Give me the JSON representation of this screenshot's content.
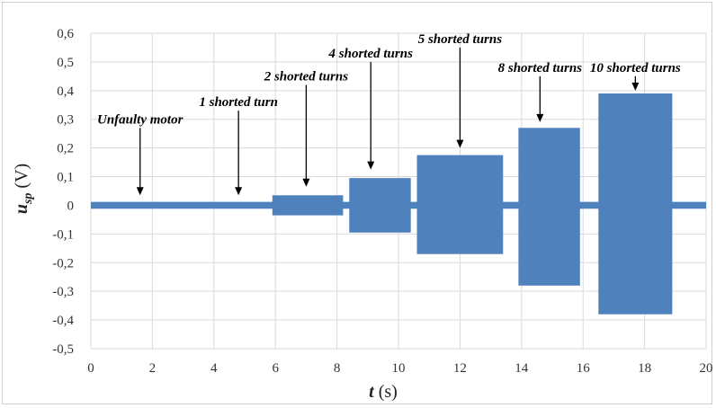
{
  "chart_data": {
    "type": "line",
    "title": "",
    "xlabel_var": "t",
    "xlabel_unit": " (s)",
    "ylabel_var": "u",
    "ylabel_sub": "sp",
    "ylabel_unit": " (V)",
    "xlim": [
      0,
      20
    ],
    "ylim": [
      -0.5,
      0.6
    ],
    "x_ticks": [
      0,
      2,
      4,
      6,
      8,
      10,
      12,
      14,
      16,
      18,
      20
    ],
    "x_tick_labels": [
      "0",
      "2",
      "4",
      "6",
      "8",
      "10",
      "12",
      "14",
      "16",
      "18",
      "20"
    ],
    "y_ticks": [
      -0.5,
      -0.4,
      -0.3,
      -0.2,
      -0.1,
      0,
      0.1,
      0.2,
      0.3,
      0.4,
      0.5,
      0.6
    ],
    "y_tick_labels": [
      "-0,5",
      "-0,4",
      "-0,3",
      "-0,2",
      "-0,1",
      "0",
      "0,1",
      "0,2",
      "0,3",
      "0,4",
      "0,5",
      "0,6"
    ],
    "grid": true,
    "series_color": "#4f81bd",
    "baseline_amplitude": 0.012,
    "segments": [
      {
        "x_start": 0.0,
        "x_end": 5.9,
        "max": 0.01,
        "min": -0.01
      },
      {
        "x_start": 5.9,
        "x_end": 8.2,
        "max": 0.035,
        "min": -0.035
      },
      {
        "x_start": 8.4,
        "x_end": 10.4,
        "max": 0.095,
        "min": -0.095
      },
      {
        "x_start": 10.6,
        "x_end": 13.4,
        "max": 0.175,
        "min": -0.17
      },
      {
        "x_start": 13.9,
        "x_end": 15.9,
        "max": 0.27,
        "min": -0.28
      },
      {
        "x_start": 16.5,
        "x_end": 18.9,
        "max": 0.39,
        "min": -0.38
      }
    ],
    "annotations": [
      {
        "text": "Unfaulty motor",
        "arrow_x": 1.6,
        "tip_y": 0.035,
        "tail_y": 0.27
      },
      {
        "text": "1 shorted turn",
        "arrow_x": 4.8,
        "tip_y": 0.035,
        "tail_y": 0.33
      },
      {
        "text": "2 shorted turns",
        "arrow_x": 7.0,
        "tip_y": 0.065,
        "tail_y": 0.42
      },
      {
        "text": "4 shorted turns",
        "arrow_x": 9.1,
        "tip_y": 0.125,
        "tail_y": 0.5
      },
      {
        "text": "5 shorted turns",
        "arrow_x": 12.0,
        "tip_y": 0.2,
        "tail_y": 0.55
      },
      {
        "text": "8 shorted turns",
        "arrow_x": 14.6,
        "tip_y": 0.29,
        "tail_y": 0.45
      },
      {
        "text": "10 shorted turns",
        "arrow_x": 17.7,
        "tip_y": 0.4,
        "tail_y": 0.45
      }
    ]
  }
}
